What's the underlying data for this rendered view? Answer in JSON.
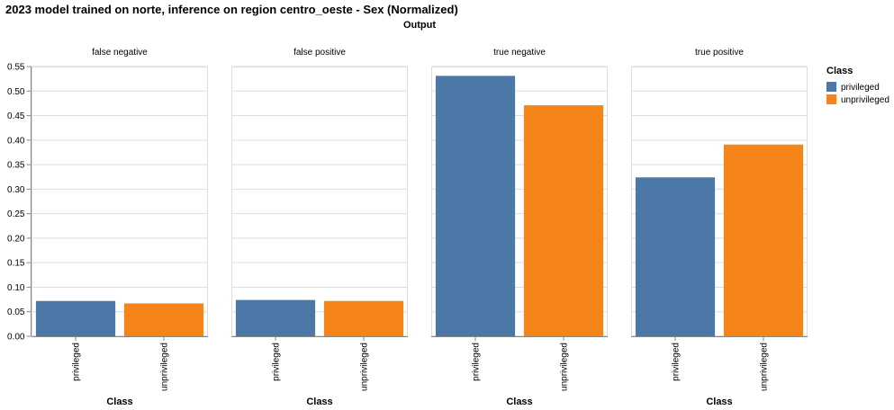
{
  "chart_data": {
    "type": "bar",
    "title": "2023 model trained on norte, inference on region centro_oeste - Sex (Normalized)",
    "column_title": "Output",
    "facets": [
      "false negative",
      "false positive",
      "true negative",
      "true positive"
    ],
    "categories": [
      "privileged",
      "unprivileged"
    ],
    "xlabel": "Class",
    "ylabel": "",
    "ylim": [
      0,
      0.55
    ],
    "yticks": [
      "0.00",
      "0.05",
      "0.10",
      "0.15",
      "0.20",
      "0.25",
      "0.30",
      "0.35",
      "0.40",
      "0.45",
      "0.50",
      "0.55"
    ],
    "grid": true,
    "colors": {
      "privileged": "#4c78a8",
      "unprivileged": "#f58518"
    },
    "values": [
      {
        "facet": "false negative",
        "privileged": 0.072,
        "unprivileged": 0.067
      },
      {
        "facet": "false positive",
        "privileged": 0.074,
        "unprivileged": 0.072
      },
      {
        "facet": "true negative",
        "privileged": 0.531,
        "unprivileged": 0.471
      },
      {
        "facet": "true positive",
        "privileged": 0.324,
        "unprivileged": 0.391
      }
    ],
    "legend": {
      "title": "Class",
      "position": "right",
      "entries": [
        "privileged",
        "unprivileged"
      ]
    }
  }
}
